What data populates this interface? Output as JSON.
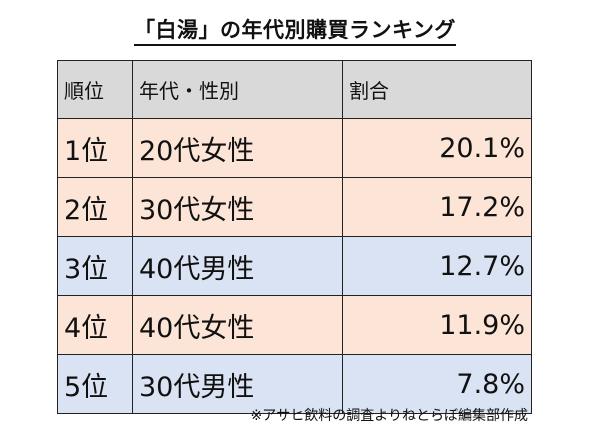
{
  "title": "「白湯」の年代別購買ランキング",
  "headers": [
    "順位",
    "年代・性別",
    "割合"
  ],
  "rows": [
    {
      "rank": "1位",
      "group": "20代女性",
      "share": "20.1%",
      "type": "female"
    },
    {
      "rank": "2位",
      "group": "30代女性",
      "share": "17.2%",
      "type": "female"
    },
    {
      "rank": "3位",
      "group": "40代男性",
      "share": "12.7%",
      "type": "male"
    },
    {
      "rank": "4位",
      "group": "40代女性",
      "share": "11.9%",
      "type": "female"
    },
    {
      "rank": "5位",
      "group": "30代男性",
      "share": "7.8%",
      "type": "male"
    }
  ],
  "footnote": "※アサヒ飲料の調査よりねとらぼ編集部作成",
  "colors": {
    "header": "#d9d9d9",
    "female": "#fce4d6",
    "male": "#dae3f3"
  }
}
